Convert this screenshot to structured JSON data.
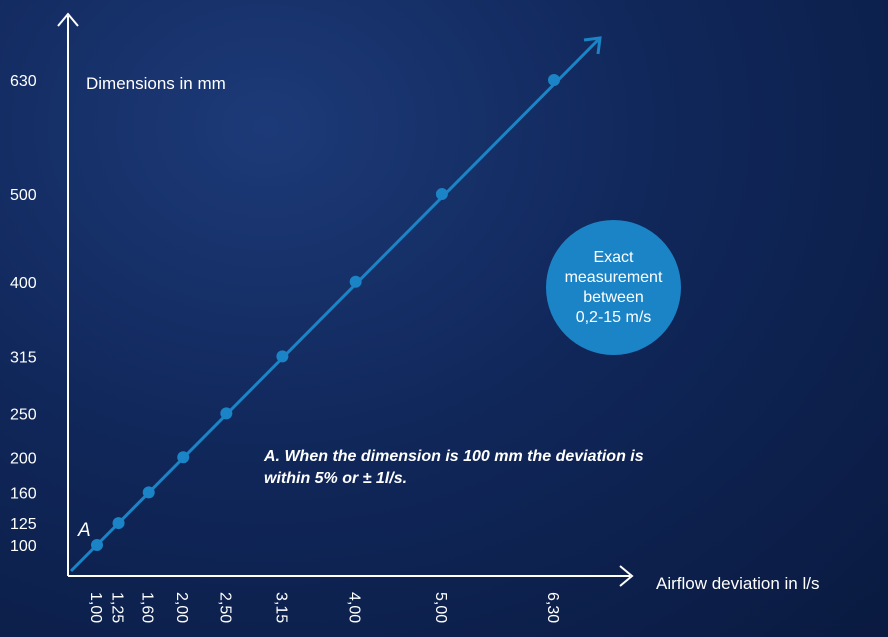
{
  "chart_data": {
    "type": "line",
    "ylabel": "Dimensions in mm",
    "xlabel": "Airflow deviation in l/s",
    "x_ticks": [
      "1,00",
      "1,25",
      "1,60",
      "2,00",
      "2,50",
      "3,15",
      "4,00",
      "5,00",
      "6,30"
    ],
    "y_ticks": [
      "100",
      "125",
      "160",
      "200",
      "250",
      "315",
      "400",
      "500",
      "630"
    ],
    "points": [
      {
        "x": 1.0,
        "y": 100
      },
      {
        "x": 1.25,
        "y": 125
      },
      {
        "x": 1.6,
        "y": 160
      },
      {
        "x": 2.0,
        "y": 200
      },
      {
        "x": 2.5,
        "y": 250
      },
      {
        "x": 3.15,
        "y": 315
      },
      {
        "x": 4.0,
        "y": 400
      },
      {
        "x": 5.0,
        "y": 500
      },
      {
        "x": 6.3,
        "y": 630
      }
    ],
    "point_label": "A",
    "annotation": "A. When the dimension is 100 mm the deviation is within 5% or ± 1l/s.",
    "callout": [
      "Exact",
      "measurement",
      "between",
      "0,2-15 m/s"
    ],
    "colors": {
      "line": "#1b84c6",
      "axis": "#ffffff",
      "callout": "#1b84c6",
      "text": "#ffffff"
    }
  }
}
